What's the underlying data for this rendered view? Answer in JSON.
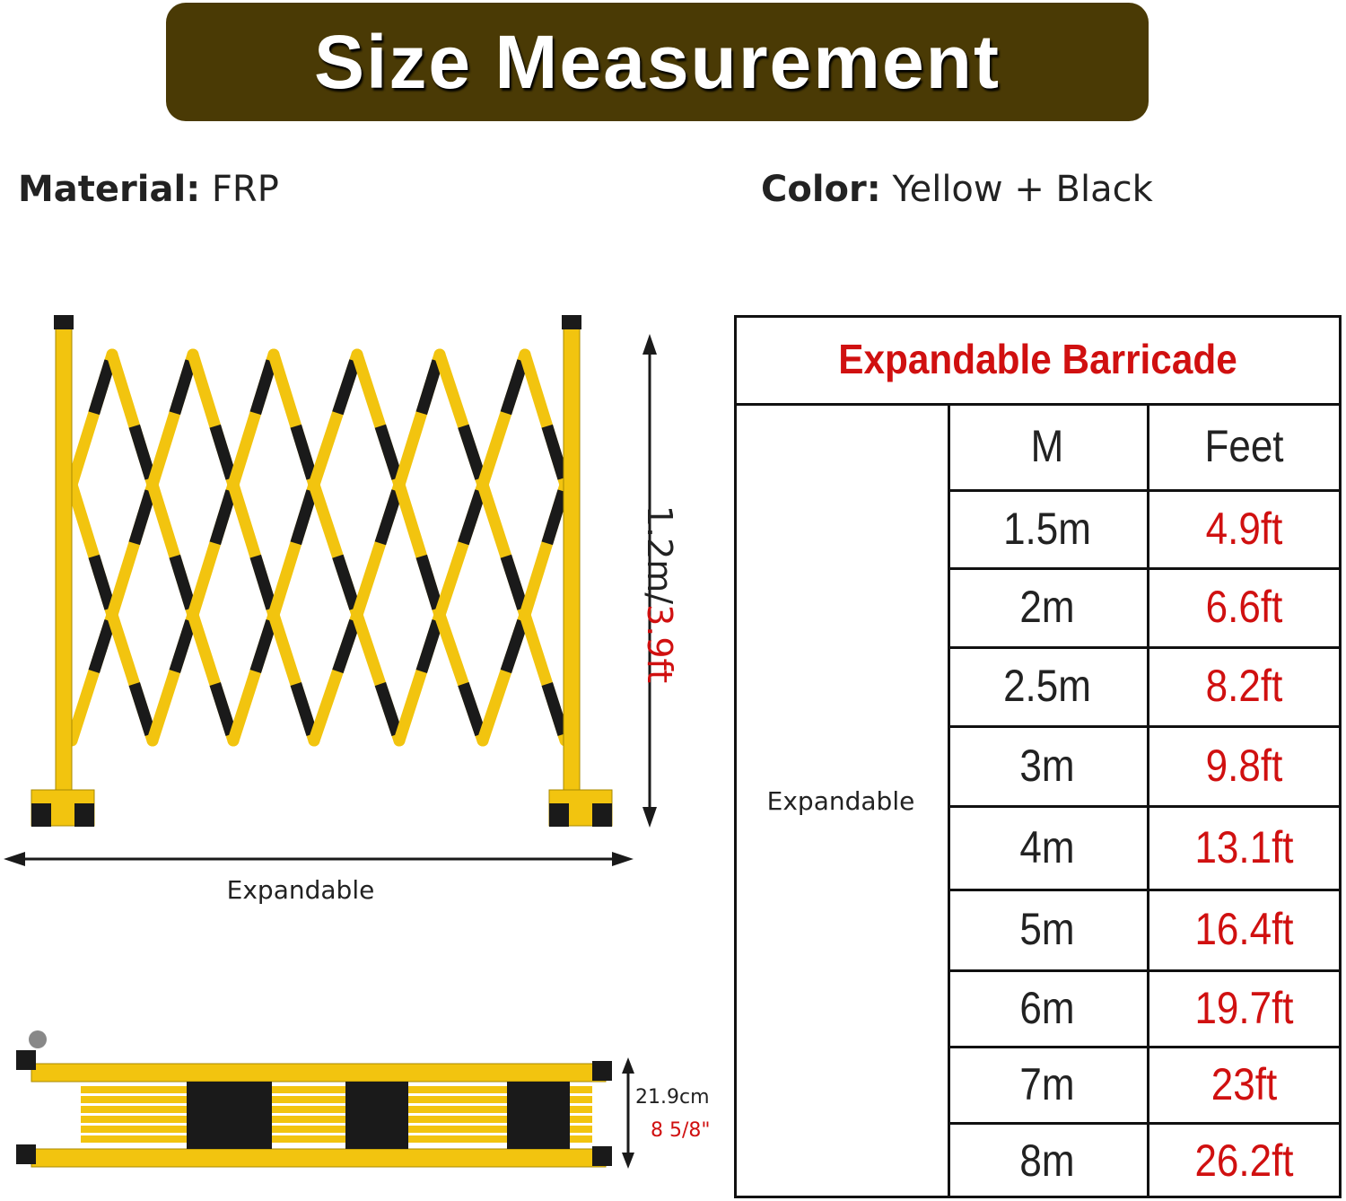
{
  "header": {
    "title": "Size Measurement"
  },
  "specs": {
    "material": {
      "label": "Material:",
      "value": "FRP"
    },
    "color": {
      "label": "Color:",
      "value": "Yellow + Black"
    }
  },
  "diagram": {
    "height": {
      "metric": "1.2m/",
      "imperial": "3.9ft"
    },
    "width_label": "Expandable",
    "folded": {
      "metric": "21.9cm",
      "imperial": "8 5/8\""
    }
  },
  "table": {
    "title": "Expandable Barricade",
    "row_label": "Expandable",
    "columns": [
      "M",
      "Feet"
    ],
    "rows": [
      [
        "1.5m",
        "4.9ft"
      ],
      [
        "2m",
        "6.6ft"
      ],
      [
        "2.5m",
        "8.2ft"
      ],
      [
        "3m",
        "9.8ft"
      ],
      [
        "4m",
        "13.1ft"
      ],
      [
        "5m",
        "16.4ft"
      ],
      [
        "6m",
        "19.7ft"
      ],
      [
        "7m",
        "23ft"
      ],
      [
        "8m",
        "26.2ft"
      ]
    ]
  }
}
